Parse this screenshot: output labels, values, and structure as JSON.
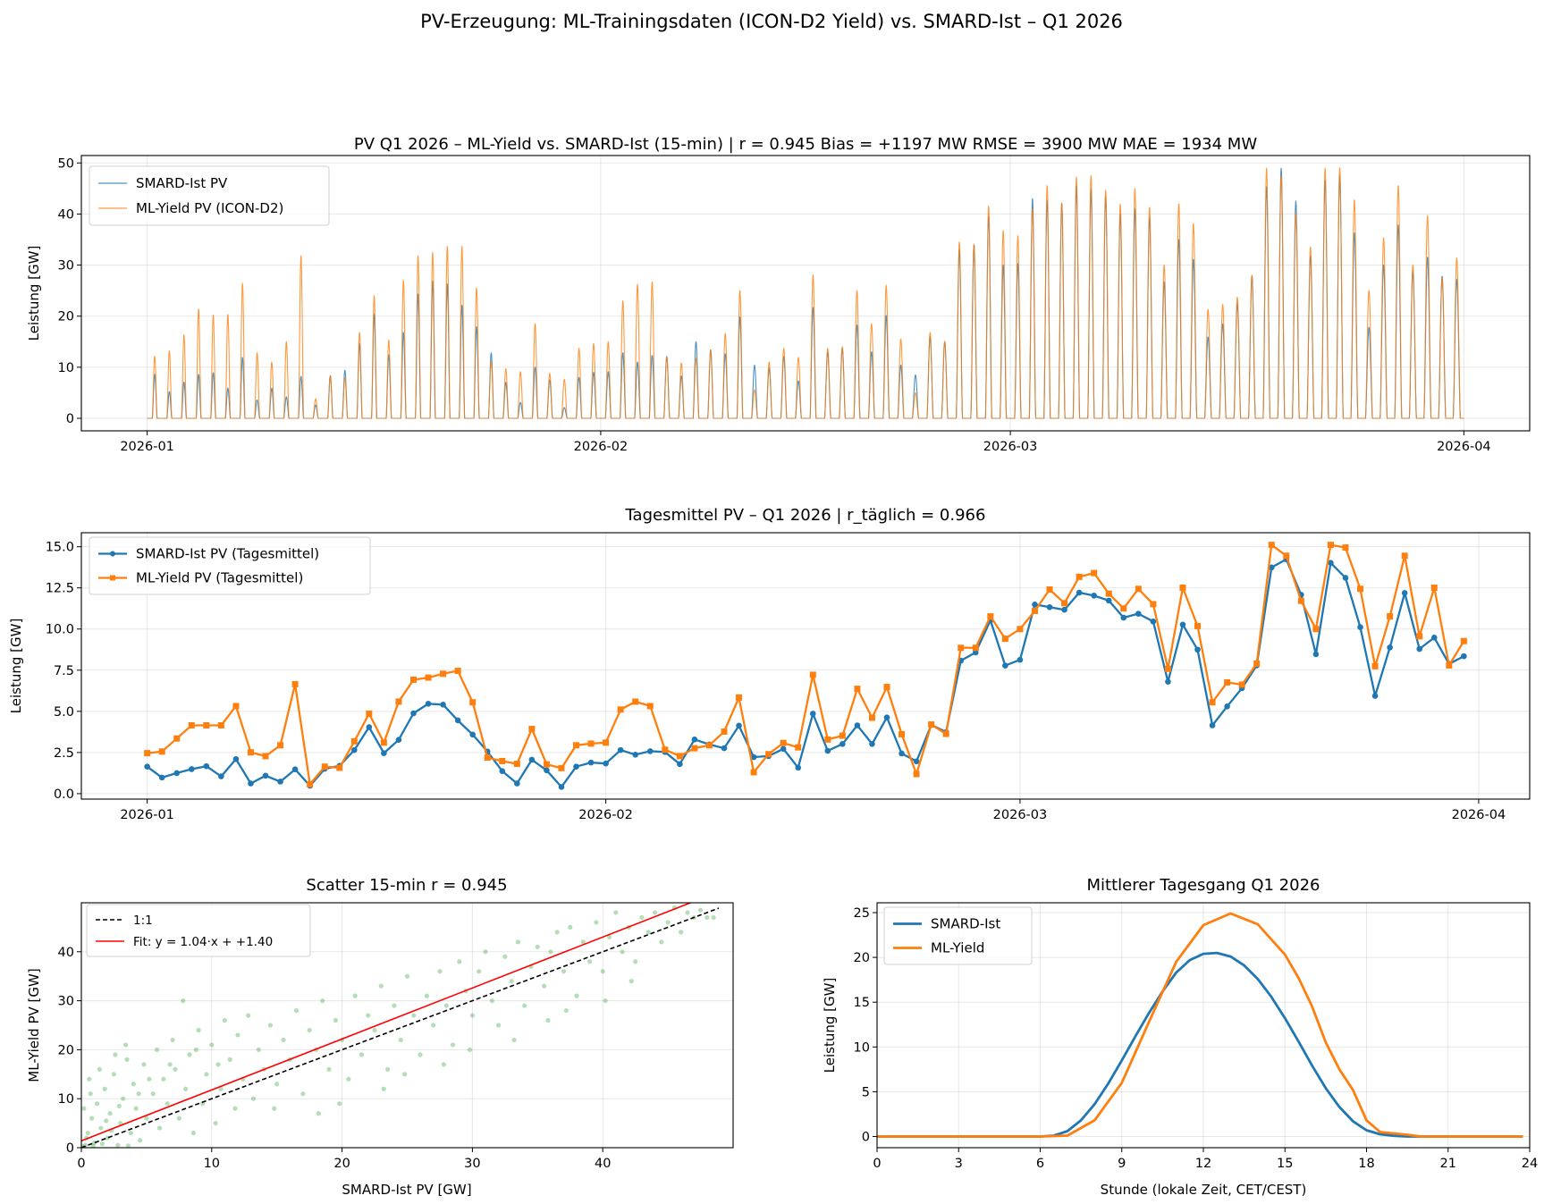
{
  "figure": {
    "title": "PV-Erzeugung: ML-Trainingsdaten (ICON-D2 Yield) vs. SMARD-Ist  –  Q1 2026"
  },
  "chart_data": [
    {
      "type": "line",
      "title": "PV Q1 2026 – ML-Yield vs. SMARD-Ist (15-min)  |  r = 0.945   Bias = +1197 MW   RMSE = 3900 MW   MAE = 1934 MW",
      "xlabel": "",
      "ylabel": "Leistung [GW]",
      "date_range": [
        "2026-01-01",
        "2026-03-31"
      ],
      "resolution": "15-min",
      "xticks": [
        "2026-01",
        "2026-02",
        "2026-03",
        "2026-04"
      ],
      "yticks": [
        0,
        10,
        20,
        30,
        40,
        50
      ],
      "ylim": [
        -2.45,
        51.45
      ],
      "grid": true,
      "legend": "top-left",
      "series": [
        {
          "name": "SMARD-Ist PV",
          "color": "#1f77b4",
          "daily_peak_gw": [
            8.6,
            5.2,
            7.1,
            8.6,
            8.9,
            5.9,
            11.9,
            3.6,
            5.9,
            4.2,
            8.2,
            2.6,
            8.3,
            9.4,
            14.6,
            20.4,
            12.4,
            16.8,
            24.3,
            26.8,
            26.3,
            22.1,
            17.9,
            12.8,
            7.0,
            3.1,
            10.0,
            7.5,
            2.1,
            8.0,
            9.0,
            9.1,
            12.8,
            11.0,
            12.3,
            12.1,
            8.3,
            15.0,
            13.4,
            12.6,
            19.8,
            10.4,
            9.8,
            12.1,
            7.3,
            21.7,
            12.9,
            13.6,
            18.3,
            13.0,
            20.1,
            10.4,
            8.5,
            16.0,
            15.0,
            33.0,
            34.0,
            39.5,
            30.0,
            30.3,
            43.0,
            42.6,
            42.1,
            45.5,
            44.8,
            43.5,
            40.0,
            41.0,
            39.2,
            26.7,
            35.0,
            31.1,
            15.9,
            18.5,
            22.5,
            27.8,
            45.3,
            48.9,
            42.5,
            31.7,
            46.5,
            47.6,
            36.3,
            17.8,
            30.0,
            37.8,
            28.9,
            31.5,
            27.8,
            27.2
          ]
        },
        {
          "name": "ML-Yield PV (ICON-D2)",
          "color": "#ff7f0e",
          "daily_peak_gw": [
            12.1,
            13.2,
            16.3,
            21.4,
            20.2,
            20.3,
            26.4,
            12.8,
            11.0,
            15.0,
            31.8,
            3.8,
            8.3,
            7.9,
            16.8,
            24.0,
            15.3,
            27.0,
            31.8,
            32.4,
            33.6,
            33.6,
            25.5,
            11.1,
            9.7,
            9.1,
            18.5,
            8.8,
            7.6,
            13.7,
            14.6,
            15.0,
            23.0,
            26.2,
            26.6,
            12.0,
            10.8,
            11.7,
            13.3,
            16.6,
            25.0,
            5.6,
            11.0,
            13.7,
            11.9,
            28.0,
            13.7,
            14.0,
            25.0,
            18.5,
            26.0,
            15.5,
            5.0,
            16.8,
            15.0,
            34.5,
            34.0,
            41.5,
            36.7,
            35.7,
            41.0,
            45.5,
            42.1,
            47.2,
            47.5,
            44.6,
            41.9,
            44.9,
            41.3,
            30.0,
            42.0,
            38.1,
            21.3,
            22.3,
            23.7,
            28.0,
            48.9,
            47.5,
            40.1,
            33.5,
            48.9,
            49.0,
            42.7,
            25.0,
            35.3,
            45.5,
            30.0,
            39.6,
            27.4,
            31.4
          ]
        }
      ]
    },
    {
      "type": "line",
      "title": "Tagesmittel PV – Q1 2026  |  r_täglich = 0.966",
      "xlabel": "",
      "ylabel": "Leistung [GW]",
      "date_range": [
        "2026-01-01",
        "2026-03-31"
      ],
      "xticks": [
        "2026-01",
        "2026-02",
        "2026-03",
        "2026-04"
      ],
      "yticks": [
        "0.0",
        "2.5",
        "5.0",
        "7.5",
        "10.0",
        "12.5",
        "15.0"
      ],
      "ylim": [
        -0.33,
        15.85
      ],
      "grid": true,
      "legend": "top-left",
      "series": [
        {
          "name": "SMARD-Ist PV (Tagesmittel)",
          "color": "#1f77b4",
          "marker": "circle",
          "values": [
            1.64,
            0.98,
            1.25,
            1.49,
            1.67,
            1.05,
            2.1,
            0.62,
            1.09,
            0.73,
            1.48,
            0.48,
            1.51,
            1.69,
            2.65,
            4.04,
            2.46,
            3.27,
            4.88,
            5.46,
            5.41,
            4.45,
            3.59,
            2.56,
            1.37,
            0.62,
            2.06,
            1.42,
            0.41,
            1.64,
            1.89,
            1.83,
            2.65,
            2.37,
            2.58,
            2.53,
            1.8,
            3.29,
            2.99,
            2.76,
            4.13,
            2.22,
            2.28,
            2.72,
            1.58,
            4.86,
            2.6,
            3.02,
            4.15,
            3.02,
            4.63,
            2.44,
            1.96,
            4.18,
            3.74,
            8.08,
            8.58,
            10.53,
            7.78,
            8.13,
            11.49,
            11.33,
            11.17,
            12.21,
            12.03,
            11.73,
            10.69,
            10.93,
            10.46,
            6.8,
            10.27,
            8.75,
            4.15,
            5.3,
            6.41,
            7.79,
            13.74,
            14.23,
            12.08,
            8.47,
            14.02,
            13.11,
            10.11,
            5.94,
            8.88,
            12.19,
            8.79,
            9.48,
            7.88,
            8.35
          ]
        },
        {
          "name": "ML-Yield PV (Tagesmittel)",
          "color": "#ff7f0e",
          "marker": "square",
          "values": [
            2.46,
            2.56,
            3.35,
            4.15,
            4.15,
            4.15,
            5.32,
            2.51,
            2.28,
            2.94,
            6.65,
            0.57,
            1.64,
            1.57,
            3.18,
            4.86,
            3.1,
            5.59,
            6.92,
            7.05,
            7.28,
            7.46,
            5.55,
            2.19,
            1.98,
            1.81,
            3.93,
            1.78,
            1.55,
            2.94,
            3.04,
            3.1,
            5.11,
            5.59,
            5.32,
            2.67,
            2.28,
            2.76,
            2.94,
            3.77,
            5.84,
            1.3,
            2.4,
            3.08,
            2.81,
            7.22,
            3.29,
            3.52,
            6.37,
            4.61,
            6.48,
            3.61,
            1.19,
            4.2,
            3.63,
            8.86,
            8.86,
            10.77,
            9.41,
            10.0,
            11.1,
            12.4,
            11.57,
            13.17,
            13.4,
            12.15,
            11.25,
            12.44,
            11.51,
            7.58,
            12.51,
            10.18,
            5.55,
            6.76,
            6.62,
            7.9,
            15.11,
            14.45,
            11.71,
            10.0,
            15.11,
            14.95,
            12.44,
            7.74,
            10.77,
            14.45,
            9.56,
            12.51,
            7.79,
            9.27
          ]
        }
      ]
    },
    {
      "type": "scatter",
      "title": "Scatter 15-min   r = 0.945",
      "xlabel": "SMARD-Ist PV [GW]",
      "ylabel": "ML-Yield PV [GW]",
      "xlim": [
        0,
        50
      ],
      "ylim": [
        0,
        50
      ],
      "xticks": [
        0,
        10,
        20,
        30,
        40
      ],
      "yticks": [
        0,
        10,
        20,
        30,
        40
      ],
      "grid": true,
      "legend": "top-left",
      "point_color": "#2ca02c",
      "points": [
        [
          0.3,
          0.5
        ],
        [
          0.5,
          3
        ],
        [
          0.8,
          6
        ],
        [
          1,
          1
        ],
        [
          1.2,
          9
        ],
        [
          1.5,
          4
        ],
        [
          1.8,
          12
        ],
        [
          2,
          2
        ],
        [
          2.2,
          7
        ],
        [
          2.5,
          15
        ],
        [
          2.8,
          0.5
        ],
        [
          3,
          5
        ],
        [
          3.2,
          10
        ],
        [
          3.5,
          18
        ],
        [
          3.8,
          3
        ],
        [
          4,
          13
        ],
        [
          4.2,
          8
        ],
        [
          4.5,
          1.5
        ],
        [
          4.8,
          17
        ],
        [
          5,
          6
        ],
        [
          0.2,
          8
        ],
        [
          0.6,
          14
        ],
        [
          1.4,
          16
        ],
        [
          2.6,
          19
        ],
        [
          3.4,
          21
        ],
        [
          5.5,
          11
        ],
        [
          5.8,
          20
        ],
        [
          6,
          4
        ],
        [
          6.3,
          14
        ],
        [
          6.6,
          9
        ],
        [
          7,
          22
        ],
        [
          7.2,
          16
        ],
        [
          7.5,
          6
        ],
        [
          7.8,
          30
        ],
        [
          8,
          12
        ],
        [
          8.3,
          19
        ],
        [
          8.6,
          3
        ],
        [
          9,
          24
        ],
        [
          9.3,
          9
        ],
        [
          9.6,
          15
        ],
        [
          10,
          21
        ],
        [
          10.3,
          5
        ],
        [
          10.7,
          12
        ],
        [
          11,
          26
        ],
        [
          11.4,
          18
        ],
        [
          11.8,
          8
        ],
        [
          12,
          23
        ],
        [
          12.4,
          14
        ],
        [
          12.8,
          27
        ],
        [
          13.2,
          10
        ],
        [
          13.6,
          20
        ],
        [
          14,
          16
        ],
        [
          14.5,
          25
        ],
        [
          15,
          13
        ],
        [
          15.5,
          22
        ],
        [
          16,
          18
        ],
        [
          16.5,
          28
        ],
        [
          17,
          11
        ],
        [
          17.5,
          24
        ],
        [
          18,
          20
        ],
        [
          18.5,
          30
        ],
        [
          19,
          16
        ],
        [
          19.5,
          26
        ],
        [
          20,
          22
        ],
        [
          20.5,
          14
        ],
        [
          21,
          31
        ],
        [
          21.5,
          19
        ],
        [
          22,
          27
        ],
        [
          22.5,
          24
        ],
        [
          23,
          33
        ],
        [
          23.5,
          16
        ],
        [
          24,
          29
        ],
        [
          24.5,
          22
        ],
        [
          25,
          35
        ],
        [
          25.5,
          27
        ],
        [
          26,
          19
        ],
        [
          26.5,
          31
        ],
        [
          27,
          25
        ],
        [
          27.5,
          36
        ],
        [
          28,
          29
        ],
        [
          28.5,
          21
        ],
        [
          29,
          38
        ],
        [
          29.5,
          32
        ],
        [
          30,
          27
        ],
        [
          30.5,
          36
        ],
        [
          31,
          40
        ],
        [
          31.5,
          30
        ],
        [
          32,
          25
        ],
        [
          32.5,
          39
        ],
        [
          33,
          34
        ],
        [
          33.5,
          42
        ],
        [
          34,
          29
        ],
        [
          34.5,
          37
        ],
        [
          35,
          41
        ],
        [
          35.5,
          33
        ],
        [
          36,
          40
        ],
        [
          36.5,
          44
        ],
        [
          37,
          36
        ],
        [
          37.5,
          45
        ],
        [
          38,
          31
        ],
        [
          38.5,
          42
        ],
        [
          39,
          38
        ],
        [
          39.5,
          46
        ],
        [
          40,
          36
        ],
        [
          40.5,
          43
        ],
        [
          41,
          48
        ],
        [
          41.5,
          40
        ],
        [
          42,
          45
        ],
        [
          42.5,
          38
        ],
        [
          43,
          47
        ],
        [
          43.5,
          44
        ],
        [
          44,
          48
        ],
        [
          44.5,
          42
        ],
        [
          45,
          46
        ],
        [
          45.5,
          49
        ],
        [
          46,
          44
        ],
        [
          46.5,
          48
        ],
        [
          47,
          47
        ],
        [
          47.5,
          48.5
        ],
        [
          48,
          47
        ],
        [
          48.5,
          47
        ],
        [
          0.1,
          0.2
        ],
        [
          0.4,
          2
        ],
        [
          0.9,
          0.3
        ],
        [
          1.6,
          0.8
        ],
        [
          2.3,
          3.5
        ],
        [
          3.6,
          0.4
        ],
        [
          0.7,
          11
        ],
        [
          1.9,
          5.5
        ],
        [
          2.9,
          8.5
        ],
        [
          4.4,
          11
        ],
        [
          5.2,
          14
        ],
        [
          6.8,
          17
        ],
        [
          8.8,
          20
        ],
        [
          10.5,
          17
        ],
        [
          14.8,
          8
        ],
        [
          19.8,
          9
        ],
        [
          24.8,
          15
        ],
        [
          29.8,
          20
        ],
        [
          35.8,
          26
        ],
        [
          40.2,
          30
        ],
        [
          27.8,
          17
        ],
        [
          23.2,
          12
        ],
        [
          18.2,
          7
        ],
        [
          33.2,
          22
        ],
        [
          37.2,
          28
        ],
        [
          42.2,
          34
        ]
      ],
      "lines": [
        {
          "name": "1:1",
          "color": "#000000",
          "style": "dashed",
          "slope": 1,
          "intercept": 0
        },
        {
          "name": "Fit: y = 1.04·x + +1.40",
          "color": "#ff0000",
          "style": "solid",
          "slope": 1.04,
          "intercept": 1.4
        }
      ]
    },
    {
      "type": "line",
      "title": "Mittlerer Tagesgang Q1 2026",
      "xlabel": "Stunde (lokale Zeit, CET/CEST)",
      "ylabel": "Leistung [GW]",
      "xlim": [
        0,
        24
      ],
      "ylim": [
        -1.25,
        26.1
      ],
      "xticks": [
        0,
        3,
        6,
        9,
        12,
        15,
        18,
        21,
        24
      ],
      "yticks": [
        0,
        5,
        10,
        15,
        20,
        25
      ],
      "grid": true,
      "legend": "top-left",
      "series": [
        {
          "name": "SMARD-Ist",
          "color": "#1f77b4",
          "x": [
            0,
            1,
            2,
            3,
            4,
            5,
            6,
            6.5,
            7,
            7.5,
            8,
            8.5,
            9,
            9.5,
            10,
            10.5,
            11,
            11.5,
            12,
            12.5,
            13,
            13.5,
            14,
            14.5,
            15,
            15.5,
            16,
            16.5,
            17,
            17.5,
            18,
            18.5,
            19,
            19.5,
            20,
            21,
            22,
            23,
            23.75
          ],
          "y": [
            0,
            0,
            0,
            0,
            0,
            0,
            0,
            0.1,
            0.6,
            1.8,
            3.6,
            5.9,
            8.5,
            11.2,
            13.8,
            16.2,
            18.3,
            19.7,
            20.4,
            20.5,
            20.1,
            19.1,
            17.6,
            15.6,
            13.2,
            10.6,
            7.9,
            5.4,
            3.3,
            1.7,
            0.7,
            0.25,
            0.08,
            0,
            0,
            0,
            0,
            0,
            0
          ]
        },
        {
          "name": "ML-Yield",
          "color": "#ff7f0e",
          "x": [
            0,
            1,
            2,
            3,
            4,
            5,
            6,
            7,
            8,
            9,
            10,
            11,
            12,
            13,
            14,
            15,
            15.5,
            16,
            16.5,
            17,
            17.5,
            18,
            18.5,
            19,
            19.5,
            20,
            21,
            22,
            23,
            23.75
          ],
          "y": [
            0,
            0,
            0,
            0,
            0,
            0,
            0,
            0.1,
            1.8,
            6.0,
            12.8,
            19.5,
            23.6,
            24.9,
            23.7,
            20.3,
            17.7,
            14.5,
            10.5,
            7.5,
            5.2,
            1.8,
            0.5,
            0.35,
            0.2,
            0,
            0,
            0,
            0,
            0
          ]
        }
      ]
    }
  ]
}
